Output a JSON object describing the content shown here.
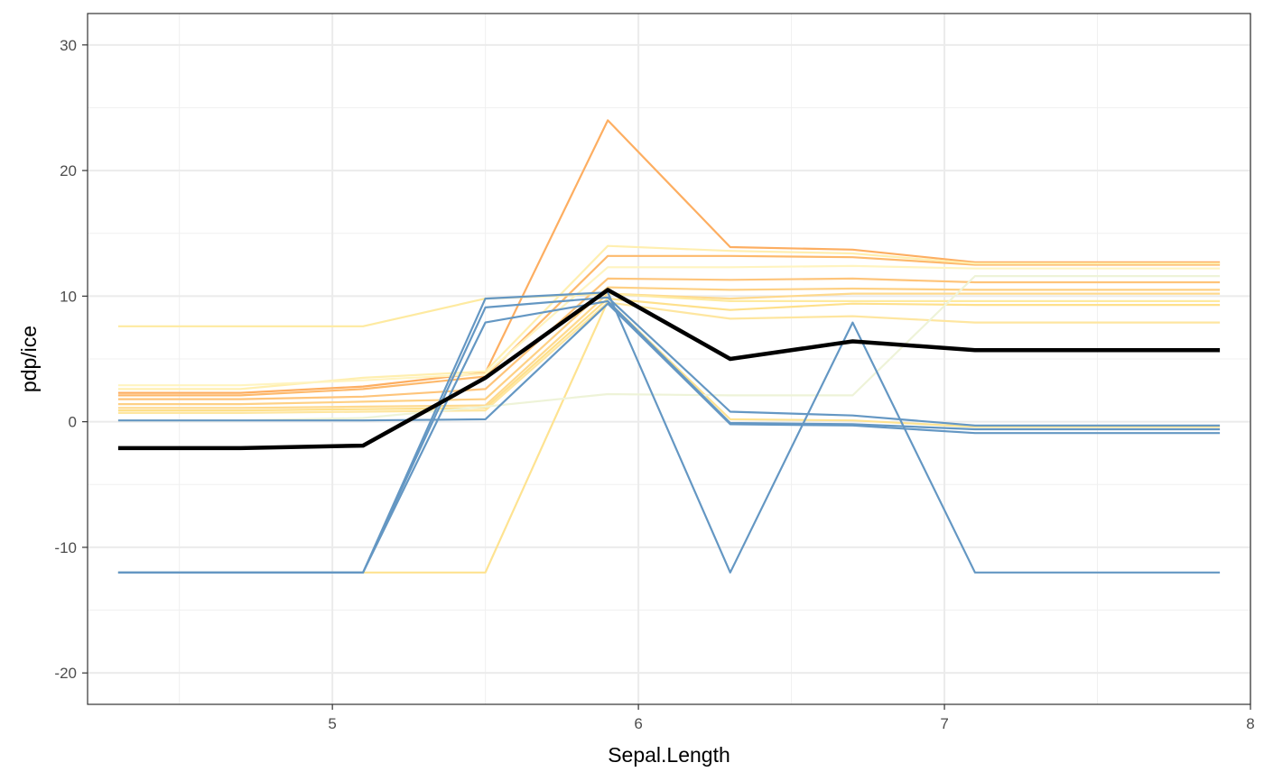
{
  "chart_data": {
    "type": "line",
    "title": "",
    "xlabel": "Sepal.Length",
    "ylabel": "pdp/ice",
    "xlim": [
      4.2,
      8.0
    ],
    "ylim": [
      -22.5,
      32.5
    ],
    "x_ticks": [
      5,
      6,
      7,
      8
    ],
    "x_tick_labels": [
      "5",
      "6",
      "7",
      "8"
    ],
    "y_ticks": [
      -20,
      -10,
      0,
      10,
      20,
      30
    ],
    "y_tick_labels": [
      "-20",
      "-10",
      "0",
      "10",
      "20",
      "30"
    ],
    "grid": true,
    "legend": "none",
    "x": [
      4.3,
      4.7,
      5.1,
      5.5,
      5.9,
      6.3,
      6.7,
      7.1,
      7.9
    ],
    "ice_series": [
      {
        "color": "#fdae61",
        "values": [
          2.3,
          2.3,
          2.8,
          3.9,
          24.0,
          13.9,
          13.7,
          12.7,
          12.7
        ]
      },
      {
        "color": "#fdb96c",
        "values": [
          2.1,
          2.1,
          2.6,
          3.6,
          13.2,
          13.2,
          13.1,
          12.5,
          12.5
        ]
      },
      {
        "color": "#fec47a",
        "values": [
          1.8,
          1.8,
          2.0,
          2.6,
          11.4,
          11.3,
          11.4,
          11.1,
          11.1
        ]
      },
      {
        "color": "#fed084",
        "values": [
          1.4,
          1.4,
          1.6,
          1.8,
          10.7,
          10.5,
          10.6,
          10.5,
          10.5
        ]
      },
      {
        "color": "#fed98e",
        "values": [
          1.1,
          1.1,
          1.2,
          1.3,
          10.2,
          9.8,
          10.2,
          10.2,
          10.2
        ]
      },
      {
        "color": "#fee08b",
        "values": [
          0.9,
          0.9,
          1.0,
          1.1,
          9.8,
          8.9,
          9.4,
          9.3,
          9.3
        ]
      },
      {
        "color": "#fee6a0",
        "values": [
          0.7,
          0.7,
          0.8,
          0.9,
          9.5,
          8.2,
          8.4,
          7.9,
          7.9
        ]
      },
      {
        "color": "#feeaa0",
        "values": [
          7.6,
          7.6,
          7.6,
          9.8,
          10.2,
          9.6,
          9.6,
          9.6,
          9.6
        ]
      },
      {
        "color": "#ffefb0",
        "values": [
          2.6,
          2.6,
          3.5,
          4.0,
          14.0,
          13.6,
          13.4,
          12.6,
          12.6
        ]
      },
      {
        "color": "#fff4c0",
        "values": [
          2.9,
          2.9,
          3.3,
          3.8,
          12.3,
          12.3,
          12.4,
          12.2,
          12.2
        ]
      },
      {
        "color": "#fee391",
        "values": [
          -12.0,
          -12.0,
          -12.0,
          -12.0,
          9.6,
          0.2,
          0.1,
          -0.4,
          -0.4
        ]
      },
      {
        "color": "#eef3d8",
        "values": [
          0.1,
          0.1,
          0.3,
          1.2,
          2.2,
          2.1,
          2.1,
          11.6,
          11.6
        ]
      },
      {
        "color": "#6497c3",
        "values": [
          -12.0,
          -12.0,
          -12.0,
          9.8,
          10.3,
          -12.0,
          7.9,
          -12.0,
          -12.0
        ]
      },
      {
        "color": "#6497c3",
        "values": [
          -12.0,
          -12.0,
          -12.0,
          9.1,
          9.9,
          0.8,
          0.5,
          -0.3,
          -0.3
        ]
      },
      {
        "color": "#6497c3",
        "values": [
          -12.0,
          -12.0,
          -12.0,
          7.9,
          9.6,
          -0.1,
          -0.2,
          -0.6,
          -0.6
        ]
      },
      {
        "color": "#6497c3",
        "values": [
          0.1,
          0.1,
          0.1,
          0.2,
          9.4,
          -0.2,
          -0.3,
          -0.9,
          -0.9
        ]
      }
    ],
    "pdp_series": {
      "color": "#000000",
      "values": [
        -2.1,
        -2.1,
        -1.9,
        3.5,
        10.5,
        5.0,
        6.4,
        5.7,
        5.7
      ]
    }
  }
}
